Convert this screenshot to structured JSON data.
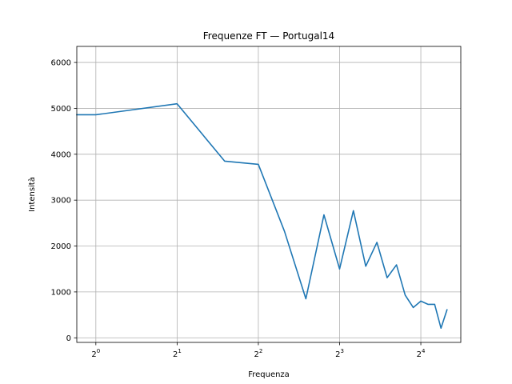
{
  "chart_data": {
    "type": "line",
    "title": "Frequenze FT — Portugal14",
    "xlabel": "Frequenza",
    "ylabel": "Intensità",
    "xscale": "log2",
    "xlim": [
      0.85,
      22.5
    ],
    "ylim": [
      -100,
      6350
    ],
    "grid": true,
    "line_color": "#1f77b4",
    "xticks": [
      {
        "value": 1,
        "base": "2",
        "exp": "0"
      },
      {
        "value": 2,
        "base": "2",
        "exp": "1"
      },
      {
        "value": 4,
        "base": "2",
        "exp": "2"
      },
      {
        "value": 8,
        "base": "2",
        "exp": "3"
      },
      {
        "value": 16,
        "base": "2",
        "exp": "4"
      }
    ],
    "yticks": [
      0,
      1000,
      2000,
      3000,
      4000,
      5000,
      6000
    ],
    "series": [
      {
        "x": [
          0.5,
          1,
          2,
          3,
          4,
          5,
          6,
          7,
          8,
          9,
          10,
          11,
          12,
          13,
          14,
          15,
          16,
          17,
          18,
          19,
          20
        ],
        "y": [
          4860,
          4860,
          5100,
          3850,
          3780,
          2320,
          850,
          2680,
          1500,
          2770,
          1560,
          2080,
          1310,
          1590,
          930,
          660,
          800,
          730,
          730,
          210,
          610
        ]
      }
    ]
  }
}
